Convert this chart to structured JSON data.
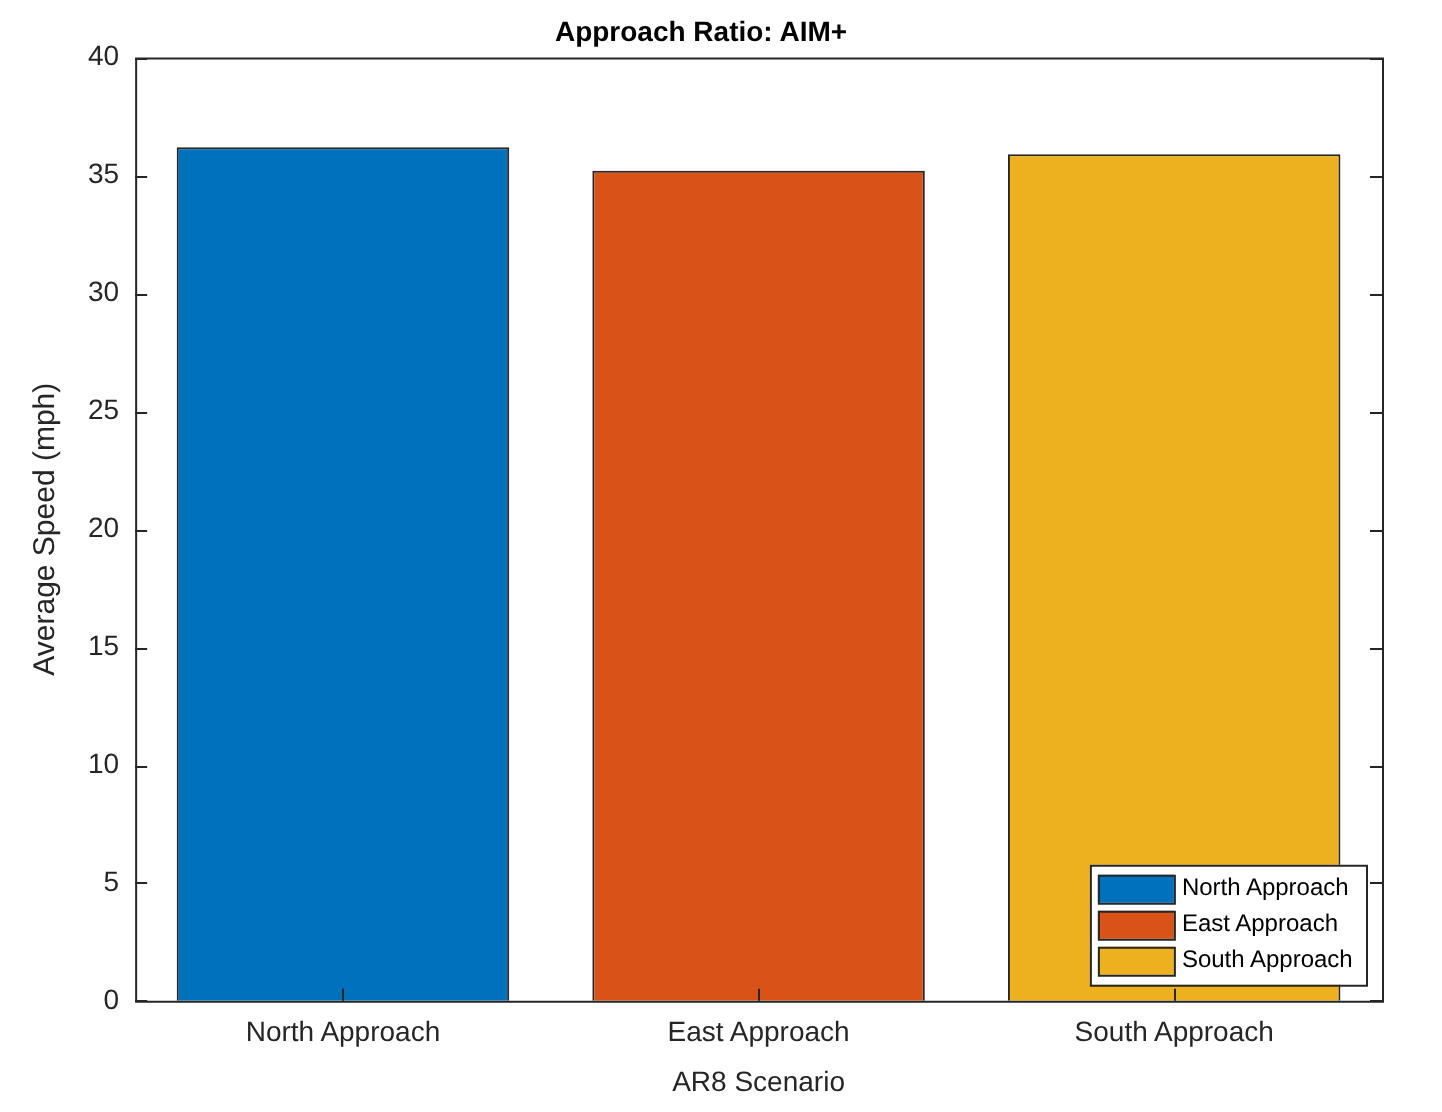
{
  "chart_data": {
    "type": "bar",
    "title": "Approach Ratio: AIM+",
    "xlabel": "AR8 Scenario",
    "ylabel": "Average Speed (mph)",
    "categories": [
      "North Approach",
      "East Approach",
      "South Approach"
    ],
    "series": [
      {
        "name": "North Approach",
        "color": "#0072bd",
        "values": [
          36.2,
          null,
          null
        ]
      },
      {
        "name": "East Approach",
        "color": "#d95319",
        "values": [
          null,
          35.2,
          null
        ]
      },
      {
        "name": "South Approach",
        "color": "#edb120",
        "values": [
          null,
          null,
          35.9
        ]
      }
    ],
    "ylim": [
      0,
      40
    ],
    "yticks": [
      0,
      5,
      10,
      15,
      20,
      25,
      30,
      35,
      40
    ],
    "grid": false,
    "legend": "bottom right"
  }
}
